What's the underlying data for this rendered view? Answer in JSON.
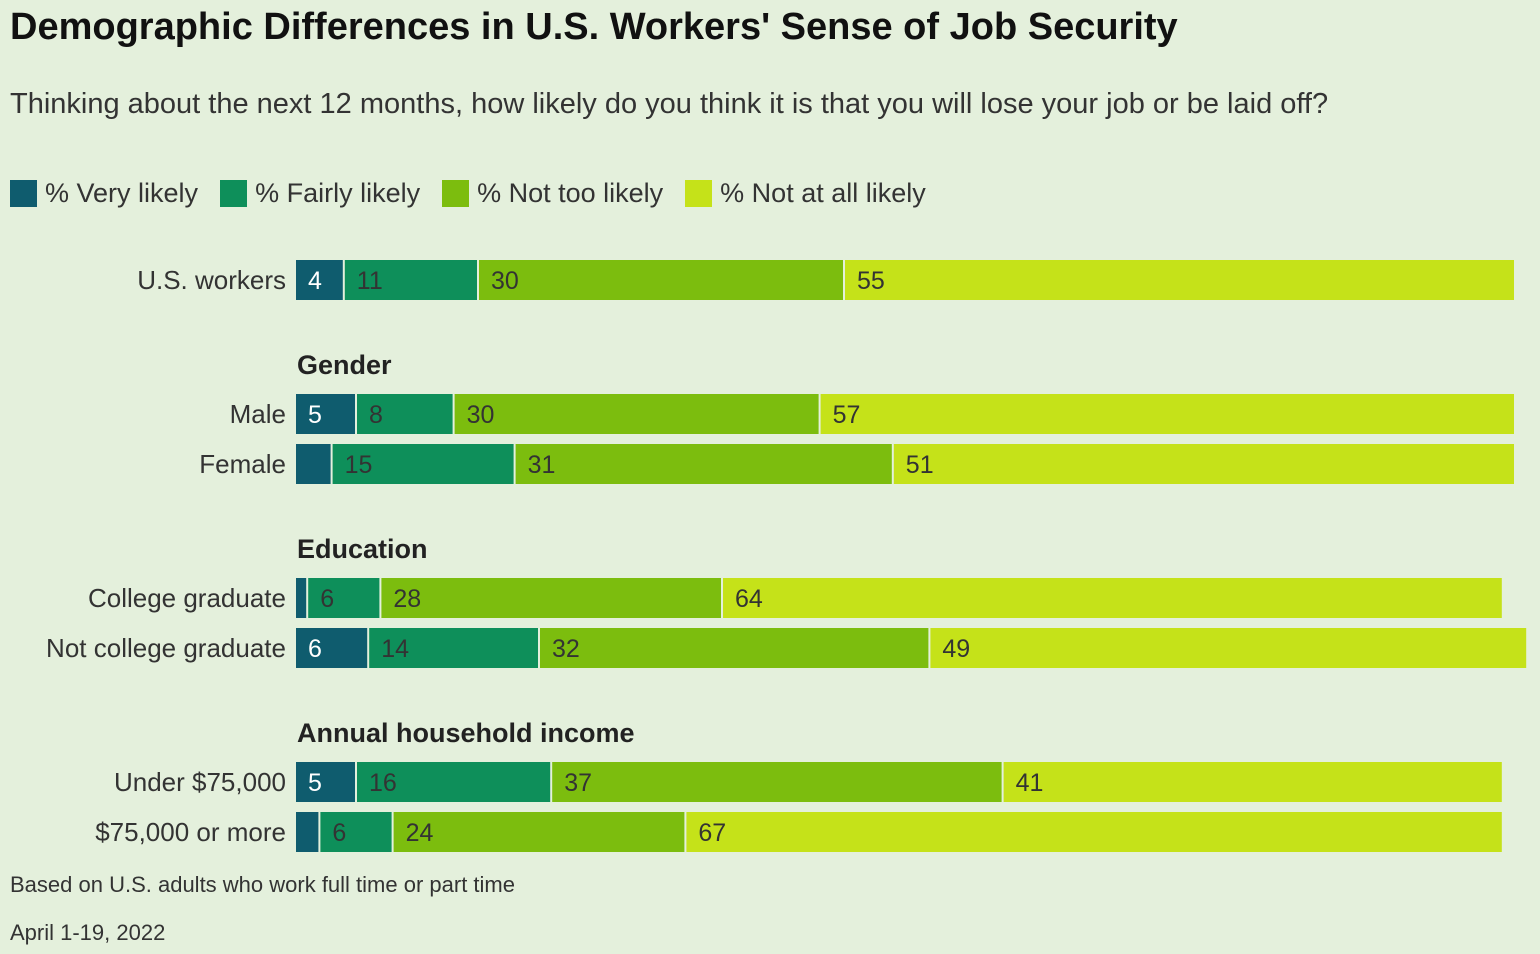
{
  "title": "Demographic Differences in U.S. Workers' Sense of Job Security",
  "subtitle": "Thinking about the next 12 months, how likely do you think it is that you will lose your job or be laid off?",
  "footnote": "Based on U.S. adults who work full time or part time",
  "date": "April 1-19, 2022",
  "colors": {
    "very_likely": "#0f5c6e",
    "fairly_likely": "#0e8f5a",
    "not_too_likely": "#7cbd0e",
    "not_at_all_likely": "#c5e219",
    "label_dark": "#333333",
    "label_light": "#ffffff"
  },
  "chart_data": {
    "type": "bar",
    "orientation": "horizontal",
    "stacked": true,
    "legend_position": "top-left",
    "grid": false,
    "series": [
      {
        "name": "% Very likely",
        "color_key": "very_likely"
      },
      {
        "name": "% Fairly likely",
        "color_key": "fairly_likely"
      },
      {
        "name": "% Not too likely",
        "color_key": "not_too_likely"
      },
      {
        "name": "% Not at all likely",
        "color_key": "not_at_all_likely"
      }
    ],
    "groups": [
      {
        "heading": "",
        "rows": [
          {
            "label": "U.S. workers",
            "values": [
              4,
              11,
              30,
              55
            ],
            "labels": [
              "4",
              "11",
              "30",
              "55"
            ]
          }
        ]
      },
      {
        "heading": "Gender",
        "rows": [
          {
            "label": "Male",
            "values": [
              5,
              8,
              30,
              57
            ],
            "labels": [
              "5",
              "8",
              "30",
              "57"
            ]
          },
          {
            "label": "Female",
            "values": [
              3,
              15,
              31,
              51
            ],
            "labels": [
              "",
              "15",
              "31",
              "51"
            ]
          }
        ]
      },
      {
        "heading": "Education",
        "rows": [
          {
            "label": "College graduate",
            "values": [
              1,
              6,
              28,
              64
            ],
            "labels": [
              "",
              "6",
              "28",
              "64"
            ]
          },
          {
            "label": "Not college graduate",
            "values": [
              6,
              14,
              32,
              49
            ],
            "labels": [
              "6",
              "14",
              "32",
              "49"
            ]
          }
        ]
      },
      {
        "heading": "Annual household income",
        "rows": [
          {
            "label": "Under $75,000",
            "values": [
              5,
              16,
              37,
              41
            ],
            "labels": [
              "5",
              "16",
              "37",
              "41"
            ]
          },
          {
            "label": "$75,000 or more",
            "values": [
              2,
              6,
              24,
              67
            ],
            "labels": [
              "",
              "6",
              "24",
              "67"
            ]
          }
        ]
      }
    ]
  }
}
